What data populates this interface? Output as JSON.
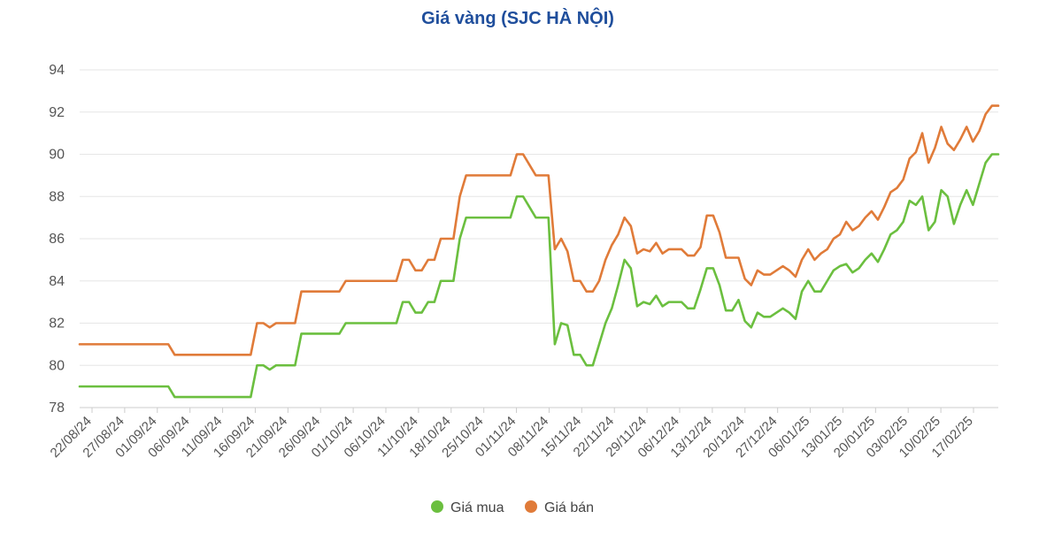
{
  "chart_data": {
    "type": "line",
    "title": "Giá vàng (SJC HÀ NỘI)",
    "xlabel": "",
    "ylabel": "",
    "ylim": [
      78,
      94
    ],
    "yticks": [
      "78",
      "80",
      "82",
      "84",
      "86",
      "88",
      "90",
      "92",
      "94"
    ],
    "xtick_labels": [
      "22/08/24",
      "27/08/24",
      "01/09/24",
      "06/09/24",
      "11/09/24",
      "16/09/24",
      "21/09/24",
      "26/09/24",
      "01/10/24",
      "06/10/24",
      "11/10/24",
      "18/10/24",
      "25/10/24",
      "01/11/24",
      "08/11/24",
      "15/11/24",
      "22/11/24",
      "29/11/24",
      "06/12/24",
      "13/12/24",
      "20/12/24",
      "27/12/24",
      "06/01/25",
      "13/01/25",
      "20/01/25",
      "03/02/25",
      "10/02/25",
      "17/02/25"
    ],
    "grid": true,
    "legend_position": "bottom",
    "series": [
      {
        "name": "Giá mua",
        "color": "#6bbf3f",
        "values": [
          79,
          79,
          79,
          79,
          79,
          79,
          79,
          79,
          79,
          79,
          79,
          79,
          79,
          79,
          79,
          78.5,
          78.5,
          78.5,
          78.5,
          78.5,
          78.5,
          78.5,
          78.5,
          78.5,
          78.5,
          78.5,
          78.5,
          78.5,
          80,
          80,
          79.8,
          80,
          80,
          80,
          80,
          81.5,
          81.5,
          81.5,
          81.5,
          81.5,
          81.5,
          81.5,
          82,
          82,
          82,
          82,
          82,
          82,
          82,
          82,
          82,
          83,
          83,
          82.5,
          82.5,
          83,
          83,
          84,
          84,
          84,
          86,
          87,
          87,
          87,
          87,
          87,
          87,
          87,
          87,
          88,
          88,
          87.5,
          87,
          87,
          87,
          81,
          82,
          81.9,
          80.5,
          80.5,
          80,
          80,
          81,
          82,
          82.7,
          83.8,
          85,
          84.6,
          82.8,
          83,
          82.9,
          83.3,
          82.8,
          83,
          83,
          83,
          82.7,
          82.7,
          83.6,
          84.6,
          84.6,
          83.8,
          82.6,
          82.6,
          83.1,
          82.1,
          81.8,
          82.5,
          82.3,
          82.3,
          82.5,
          82.7,
          82.5,
          82.2,
          83.5,
          84,
          83.5,
          83.5,
          84,
          84.5,
          84.7,
          84.8,
          84.4,
          84.6,
          85,
          85.3,
          84.9,
          85.5,
          86.2,
          86.4,
          86.8,
          87.8,
          87.6,
          88,
          86.4,
          86.8,
          88.3,
          88,
          86.7,
          87.6,
          88.3,
          87.6,
          88.6,
          89.6,
          90,
          90
        ]
      },
      {
        "name": "Giá bán",
        "color": "#e07b39",
        "values": [
          81,
          81,
          81,
          81,
          81,
          81,
          81,
          81,
          81,
          81,
          81,
          81,
          81,
          81,
          81,
          80.5,
          80.5,
          80.5,
          80.5,
          80.5,
          80.5,
          80.5,
          80.5,
          80.5,
          80.5,
          80.5,
          80.5,
          80.5,
          82,
          82,
          81.8,
          82,
          82,
          82,
          82,
          83.5,
          83.5,
          83.5,
          83.5,
          83.5,
          83.5,
          83.5,
          84,
          84,
          84,
          84,
          84,
          84,
          84,
          84,
          84,
          85,
          85,
          84.5,
          84.5,
          85,
          85,
          86,
          86,
          86,
          88,
          89,
          89,
          89,
          89,
          89,
          89,
          89,
          89,
          90,
          90,
          89.5,
          89,
          89,
          89,
          85.5,
          86,
          85.4,
          84,
          84,
          83.5,
          83.5,
          84,
          85,
          85.7,
          86.2,
          87,
          86.6,
          85.3,
          85.5,
          85.4,
          85.8,
          85.3,
          85.5,
          85.5,
          85.5,
          85.2,
          85.2,
          85.6,
          87.1,
          87.1,
          86.3,
          85.1,
          85.1,
          85.1,
          84.1,
          83.8,
          84.5,
          84.3,
          84.3,
          84.5,
          84.7,
          84.5,
          84.2,
          85,
          85.5,
          85,
          85.3,
          85.5,
          86,
          86.2,
          86.8,
          86.4,
          86.6,
          87,
          87.3,
          86.9,
          87.5,
          88.2,
          88.4,
          88.8,
          89.8,
          90.1,
          91,
          89.6,
          90.3,
          91.3,
          90.5,
          90.2,
          90.7,
          91.3,
          90.6,
          91.1,
          91.9,
          92.3,
          92.3
        ]
      }
    ]
  }
}
